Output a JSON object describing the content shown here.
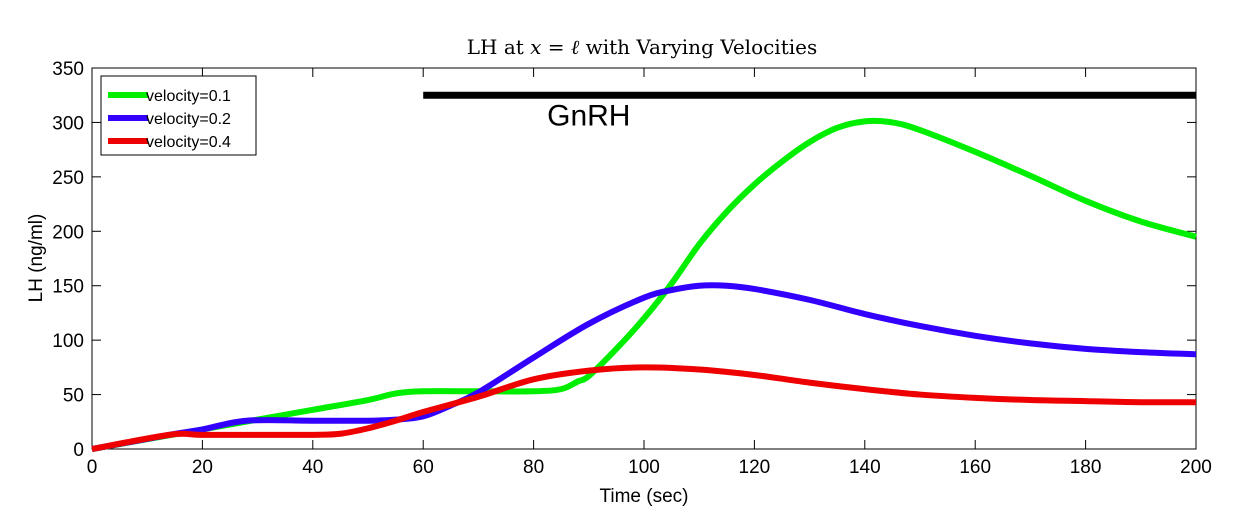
{
  "chart_data": {
    "type": "line",
    "title_parts": [
      "LH at ",
      "x",
      " = ",
      "ℓ",
      " with Varying Velocities"
    ],
    "xlabel": "Time (sec)",
    "ylabel": "LH (ng/ml)",
    "xlim": [
      0,
      200
    ],
    "ylim": [
      0,
      350
    ],
    "xticks": [
      0,
      20,
      40,
      60,
      80,
      100,
      120,
      140,
      160,
      180,
      200
    ],
    "yticks": [
      0,
      50,
      100,
      150,
      200,
      250,
      300,
      350
    ],
    "grid": false,
    "legend_position": "top-left",
    "series": [
      {
        "name": "velocity=0.1",
        "color": "#00ee00",
        "x": [
          0,
          10,
          20,
          30,
          40,
          50,
          55,
          60,
          70,
          80,
          85,
          88,
          90,
          95,
          100,
          105,
          110,
          115,
          120,
          125,
          130,
          135,
          140,
          145,
          150,
          160,
          170,
          180,
          190,
          200
        ],
        "y": [
          0,
          9,
          18,
          27,
          36,
          45,
          51,
          53,
          53,
          53,
          55,
          62,
          67,
          92,
          120,
          152,
          188,
          218,
          243,
          264,
          282,
          295,
          301,
          300,
          293,
          273,
          251,
          228,
          209,
          195
        ]
      },
      {
        "name": "velocity=0.2",
        "color": "#3300ff",
        "x": [
          0,
          14,
          20,
          28,
          40,
          50,
          55,
          60,
          65,
          70,
          80,
          90,
          100,
          105,
          110,
          115,
          120,
          130,
          140,
          150,
          160,
          170,
          180,
          190,
          200
        ],
        "y": [
          0,
          13,
          18,
          26,
          26,
          26,
          27,
          30,
          40,
          52,
          84,
          115,
          139,
          146,
          150,
          150,
          147,
          137,
          124,
          113,
          104,
          97,
          92,
          89,
          87
        ]
      },
      {
        "name": "velocity=0.4",
        "color": "#ee0000",
        "x": [
          0,
          14,
          20,
          30,
          40,
          45,
          50,
          55,
          60,
          70,
          80,
          90,
          100,
          110,
          120,
          130,
          140,
          150,
          160,
          170,
          180,
          190,
          200
        ],
        "y": [
          0,
          13,
          13,
          13,
          13,
          14,
          19,
          26,
          34,
          48,
          64,
          72,
          75,
          73,
          68,
          61,
          55,
          50,
          47,
          45,
          44,
          43,
          43
        ]
      }
    ],
    "annotations": [
      {
        "text": "GnRH",
        "bar_x": [
          60,
          200
        ],
        "bar_y": 325,
        "label_x": 90,
        "label_y": 297
      }
    ]
  }
}
